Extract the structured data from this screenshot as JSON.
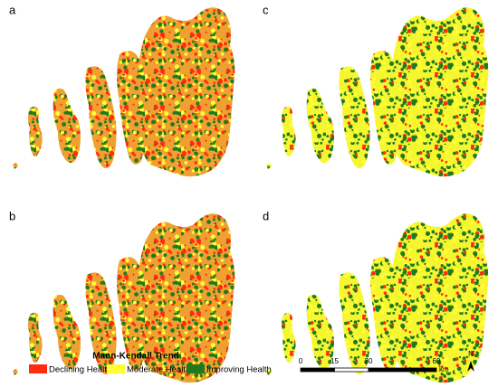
{
  "panels": [
    {
      "label": "a"
    },
    {
      "label": "b"
    },
    {
      "label": "c"
    },
    {
      "label": "d"
    }
  ],
  "legend": {
    "title": "Mann-Kendall Trend",
    "items": [
      {
        "label": "Declining Health",
        "color": "#ff2a10"
      },
      {
        "label": "Moderate Health",
        "color": "#ffff33"
      },
      {
        "label": "Improving Health",
        "color": "#1f7a1f"
      }
    ]
  },
  "scale_bar": {
    "ticks": [
      0,
      15,
      30,
      60
    ],
    "unit": "km"
  },
  "north": "N"
}
